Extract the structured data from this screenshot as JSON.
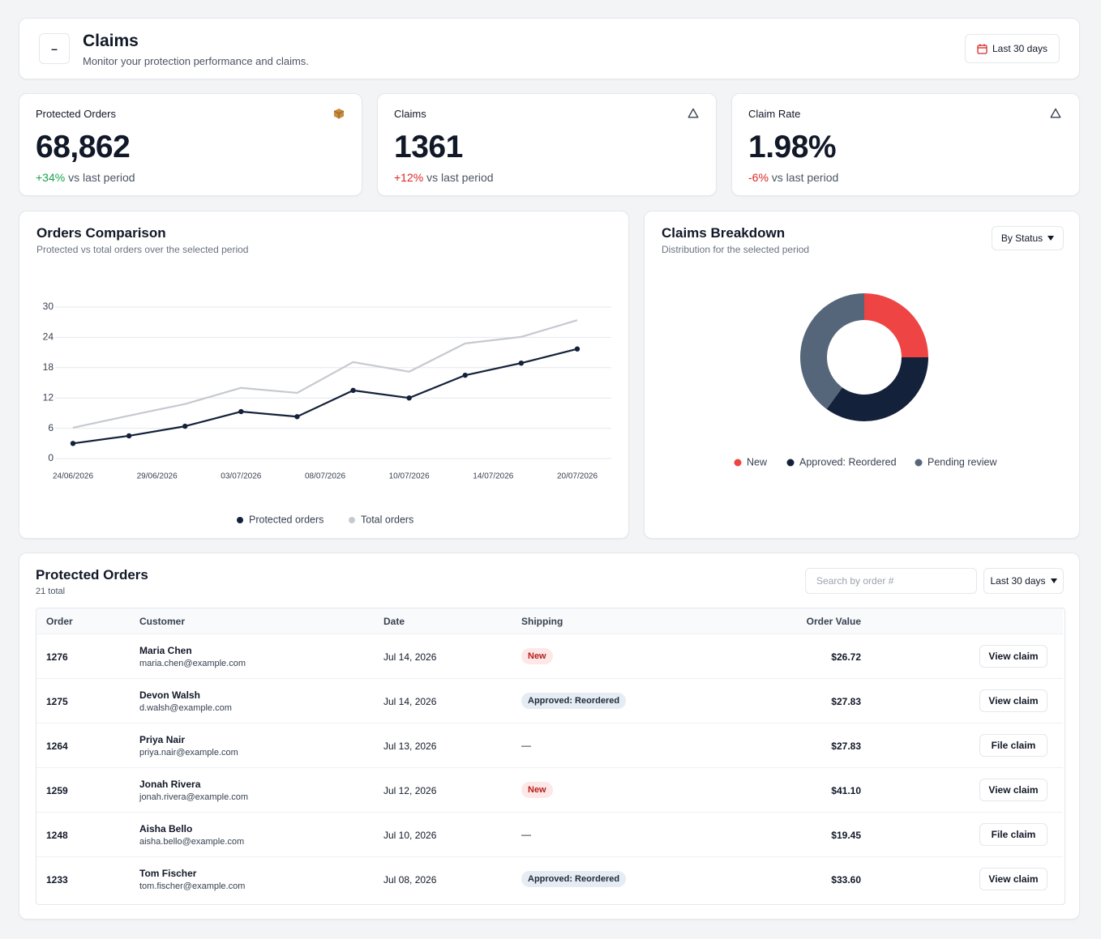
{
  "header": {
    "collapse": "–",
    "title": "Claims",
    "subtitle": "Monitor your protection performance and claims.",
    "date_range": "Last 30 days"
  },
  "kpis": [
    {
      "label": "Protected Orders",
      "value": "68,862",
      "change": "+34%",
      "comparison": "vs last period"
    },
    {
      "label": "Claims",
      "value": "1361",
      "change": "+12%",
      "comparison": "vs last period"
    },
    {
      "label": "Claim Rate",
      "value": "1.98%",
      "change": "-6%",
      "comparison": "vs last period"
    }
  ],
  "chart_data": [
    {
      "type": "line",
      "title": "Orders Comparison",
      "subtitle": "Protected vs total orders over the selected period",
      "xlim": [
        0,
        9
      ],
      "xticks": [
        {
          "value": 0,
          "label": "24/06/2026"
        },
        {
          "value": 1.5,
          "label": "29/06/2026"
        },
        {
          "value": 3,
          "label": "03/07/2026"
        },
        {
          "value": 4.5,
          "label": "08/07/2026"
        },
        {
          "value": 6,
          "label": "10/07/2026"
        },
        {
          "value": 7.5,
          "label": "14/07/2026"
        },
        {
          "value": 9,
          "label": "20/07/2026"
        }
      ],
      "ylim": [
        0,
        30
      ],
      "yticks": [
        0,
        6,
        12,
        18,
        24,
        30
      ],
      "grid": true,
      "series": [
        {
          "name": "Protected orders",
          "color": "#14213a",
          "markers": true,
          "values": [
            3.0,
            4.5,
            6.4,
            9.3,
            8.3,
            13.5,
            12.0,
            16.5,
            18.9,
            21.7
          ]
        },
        {
          "name": "Total orders",
          "color": "#c6c9cf",
          "markers": false,
          "values": [
            6.1,
            8.5,
            10.8,
            14.0,
            13.0,
            19.1,
            17.2,
            22.8,
            24.1,
            27.4
          ]
        }
      ]
    },
    {
      "type": "pie",
      "donut": true,
      "title": "Claims Breakdown",
      "subtitle": "Distribution for the selected period",
      "control": "By Status",
      "categories": [
        "New",
        "Approved: Reordered",
        "Pending review"
      ],
      "values": [
        25,
        35,
        40
      ],
      "colors": [
        "#ef4444",
        "#14213a",
        "#56667a"
      ]
    }
  ],
  "table": {
    "title": "Protected Orders",
    "count": "21 total",
    "search_placeholder": "Search by order #",
    "filter": "Last 30 days",
    "columns": [
      "Order",
      "Customer",
      "Date",
      "Shipping",
      "Order Value"
    ],
    "rows": [
      [
        "1276",
        "Maria Chen",
        "maria.chen@example.com",
        "Jul 14, 2026",
        "New",
        "$26.72",
        "View claim"
      ],
      [
        "1275",
        "Devon Walsh",
        "d.walsh@example.com",
        "Jul 14, 2026",
        "Approved: Reordered",
        "$27.83",
        "View claim"
      ],
      [
        "1264",
        "Priya Nair",
        "priya.nair@example.com",
        "Jul 13, 2026",
        "—",
        "$27.83",
        "File claim"
      ],
      [
        "1259",
        "Jonah Rivera",
        "jonah.rivera@example.com",
        "Jul 12, 2026",
        "New",
        "$41.10",
        "View claim"
      ],
      [
        "1248",
        "Aisha Bello",
        "aisha.bello@example.com",
        "Jul 10, 2026",
        "—",
        "$19.45",
        "File claim"
      ],
      [
        "1233",
        "Tom Fischer",
        "tom.fischer@example.com",
        "Jul 08, 2026",
        "Approved: Reordered",
        "$33.60",
        "View claim"
      ]
    ]
  }
}
